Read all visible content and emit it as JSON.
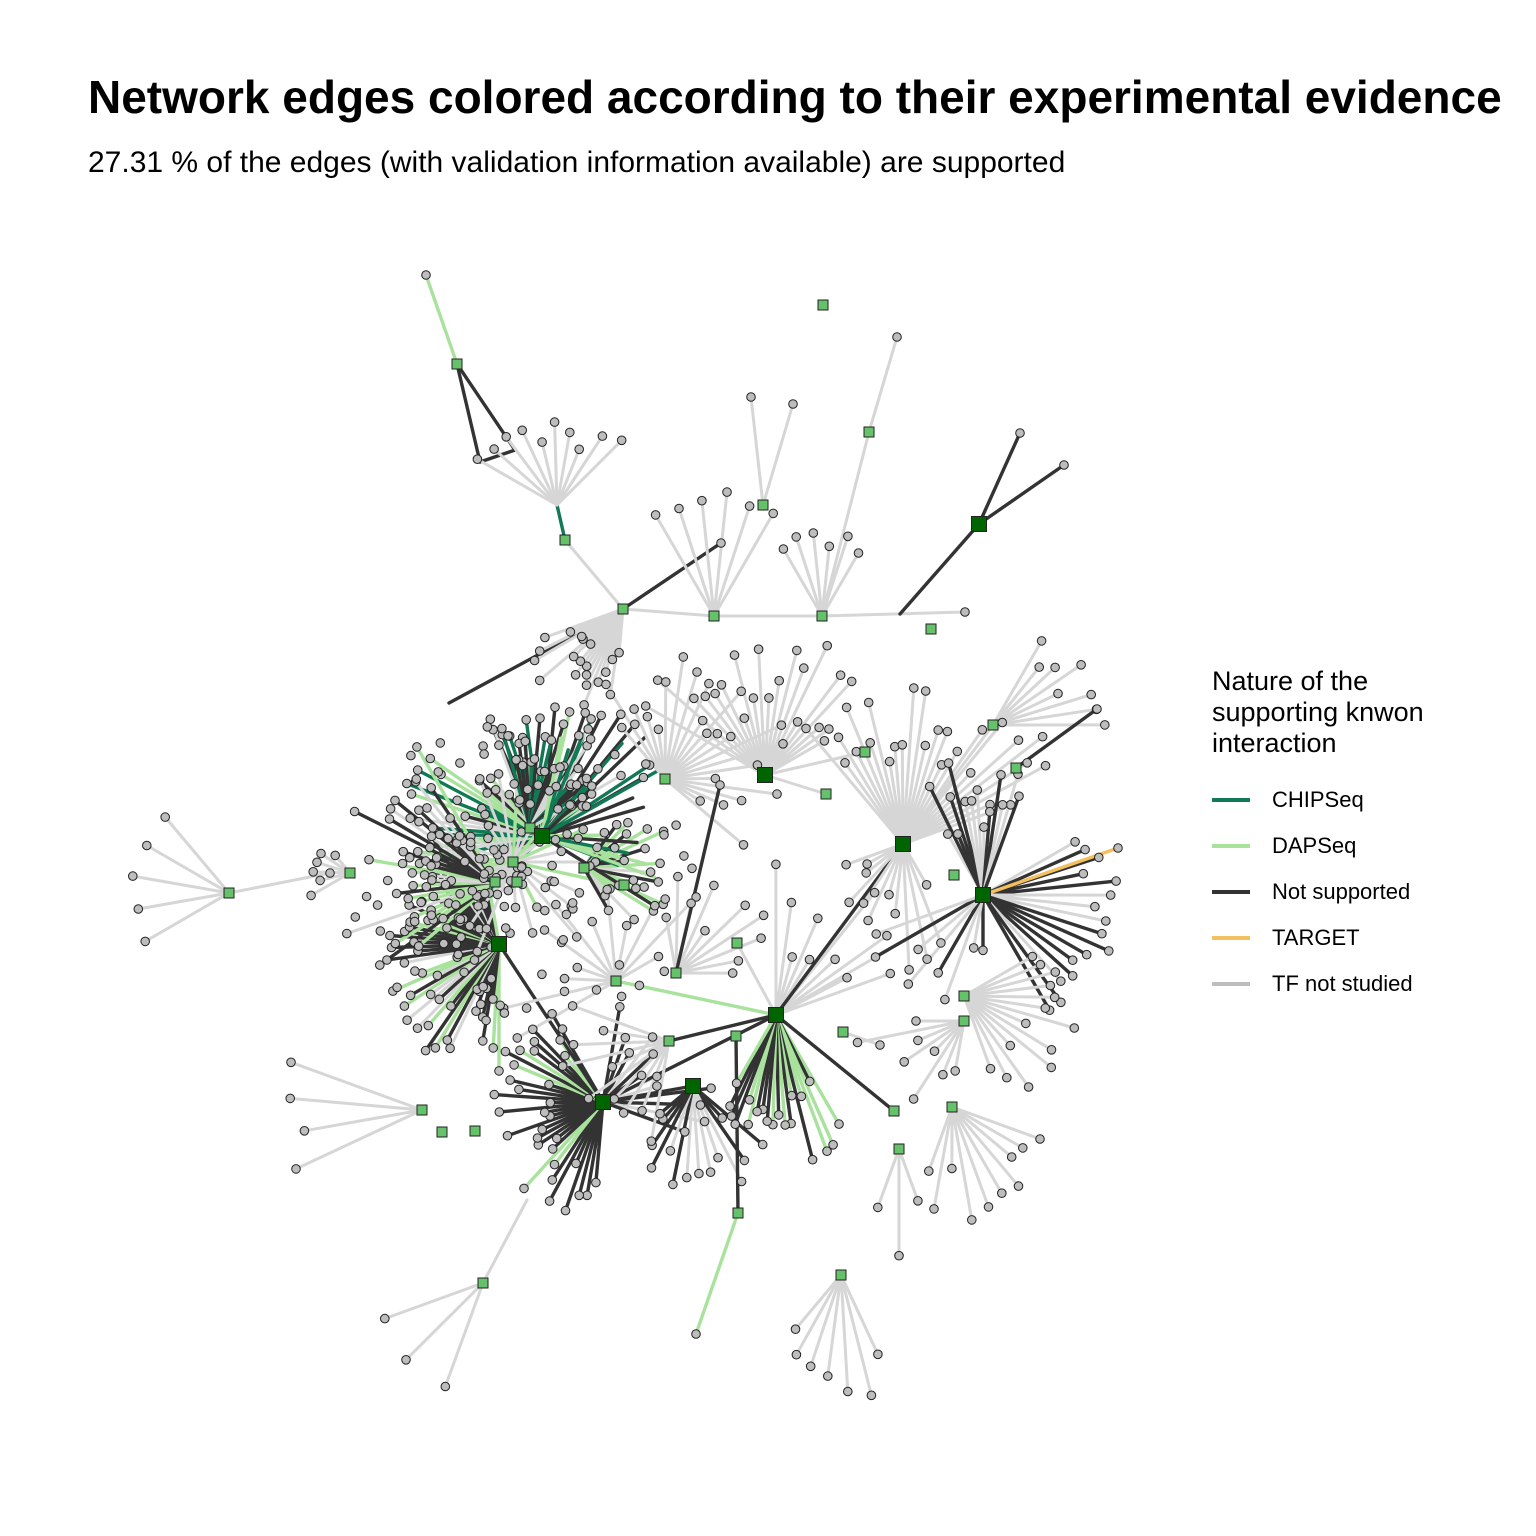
{
  "title": "Network edges colored according to their experimental evidence",
  "subtitle": "27.31 % of the edges (with validation information available) are supported",
  "legend": {
    "title_lines": [
      "Nature of the",
      "supporting knwon",
      "interaction"
    ],
    "items": [
      {
        "label": "CHIPSeq",
        "color": "#117a55"
      },
      {
        "label": "DAPSeq",
        "color": "#a8e29c"
      },
      {
        "label": "Not supported",
        "color": "#333333"
      },
      {
        "label": "TARGET",
        "color": "#f4bf5f"
      },
      {
        "label": "TF not studied",
        "color": "#bebebe"
      }
    ]
  },
  "colors": {
    "hub_fill": "#006400",
    "tf_fill": "#66c26a",
    "target_fill": "#bdbdbd",
    "node_stroke": "#222222"
  }
}
